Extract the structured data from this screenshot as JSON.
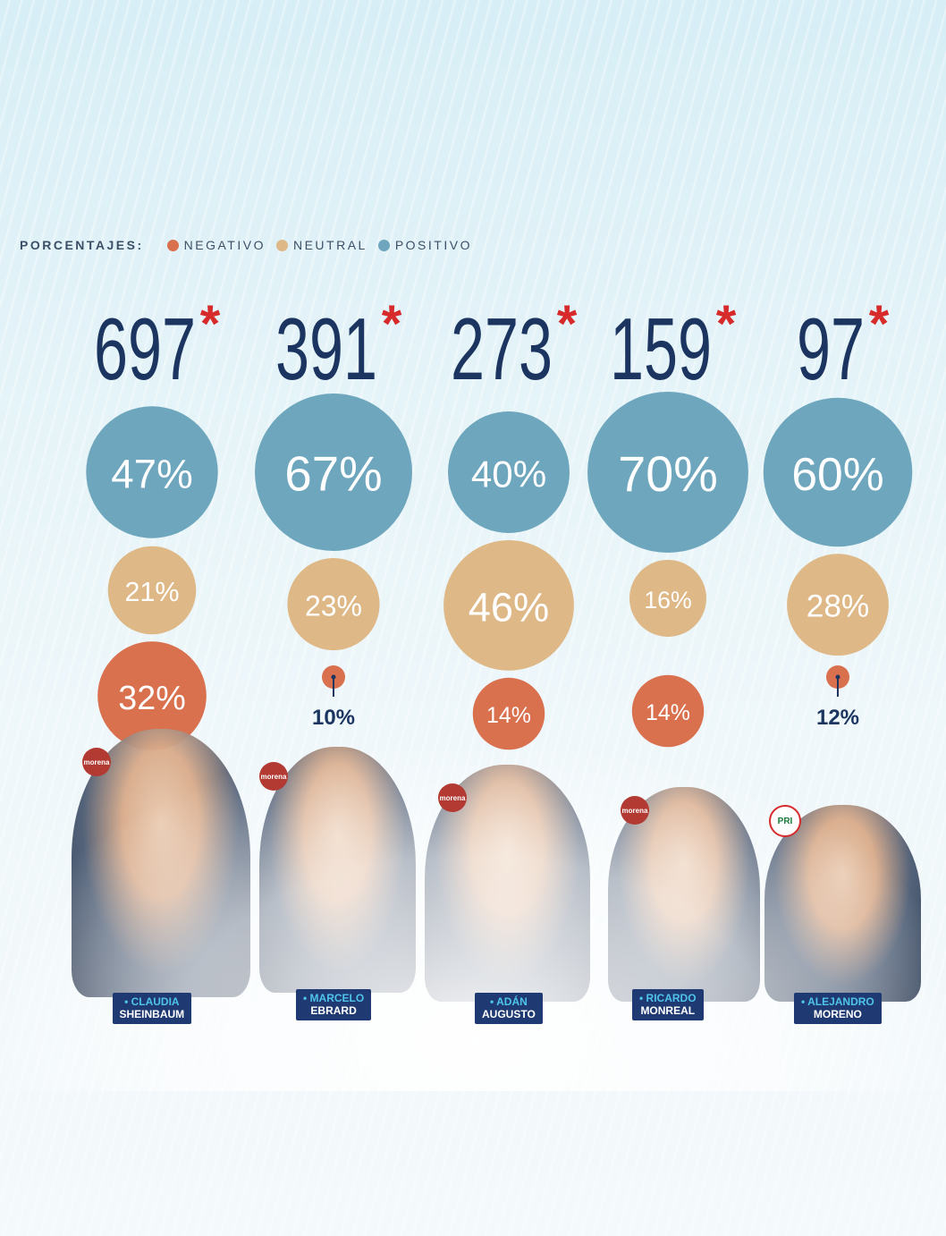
{
  "legend": {
    "title": "PORCENTAJES:",
    "items": [
      {
        "label": "NEGATIVO",
        "color": "#d9704e"
      },
      {
        "label": "NEUTRAL",
        "color": "#deb886"
      },
      {
        "label": "POSITIVO",
        "color": "#6ea6bd"
      }
    ]
  },
  "colors": {
    "negativo": "#d9704e",
    "neutral": "#deb886",
    "positivo": "#6ea6bd",
    "text": "#1b3560",
    "star": "#d72a2a"
  },
  "chart_data": {
    "type": "bubble",
    "legend_position": "top-left",
    "series_names": [
      "NEGATIVO",
      "NEUTRAL",
      "POSITIVO"
    ],
    "items": [
      {
        "first": "CLAUDIA",
        "last": "SHEINBAUM",
        "party": "morena",
        "total": "697",
        "positivo": 47,
        "neutral": 21,
        "negativo": 32
      },
      {
        "first": "MARCELO",
        "last": "EBRARD",
        "party": "morena",
        "total": "391",
        "positivo": 67,
        "neutral": 23,
        "negativo": 10
      },
      {
        "first": "ADÁN",
        "last": "AUGUSTO",
        "party": "morena",
        "total": "273",
        "positivo": 40,
        "neutral": 46,
        "negativo": 14
      },
      {
        "first": "RICARDO",
        "last": "MONREAL",
        "party": "morena",
        "total": "159",
        "positivo": 70,
        "neutral": 16,
        "negativo": 14
      },
      {
        "first": "ALEJANDRO",
        "last": "MORENO",
        "party": "PRI",
        "total": "97",
        "positivo": 60,
        "neutral": 28,
        "negativo": 12
      }
    ],
    "total_suffix": "*"
  }
}
